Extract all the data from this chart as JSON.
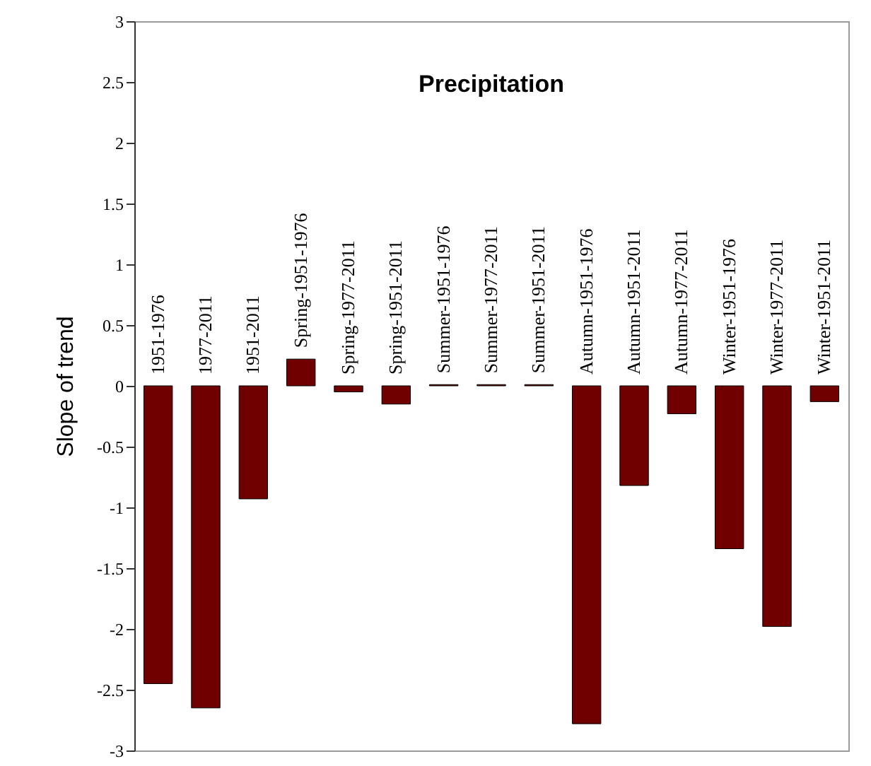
{
  "chart_data": {
    "type": "bar",
    "title": "Precipitation",
    "ylabel": "Slope of trend",
    "categories": [
      "1951-1976",
      "1977-2011",
      "1951-2011",
      "Spring-1951-1976",
      "Spring-1977-2011",
      "Spring-1951-2011",
      "Summer-1951-1976",
      "Summer-1977-2011",
      "Summer-1951-2011",
      "Autumn-1951-1976",
      "Autumn-1951-2011",
      "Autumn-1977-2011",
      "Winter-1951-1976",
      "Winter-1977-2011",
      "Winter-1951-2011"
    ],
    "values": [
      -2.45,
      -2.65,
      -0.93,
      0.22,
      -0.05,
      -0.15,
      0.01,
      0.01,
      0.01,
      -2.78,
      -0.82,
      -0.23,
      -1.34,
      -1.98,
      -0.13
    ],
    "color": "#700000",
    "ylim": [
      -3,
      3
    ],
    "yticks": [
      -3,
      -2.5,
      -2,
      -1.5,
      -1,
      -0.5,
      0,
      0.5,
      1,
      1.5,
      2,
      2.5,
      3
    ],
    "grid": false
  }
}
